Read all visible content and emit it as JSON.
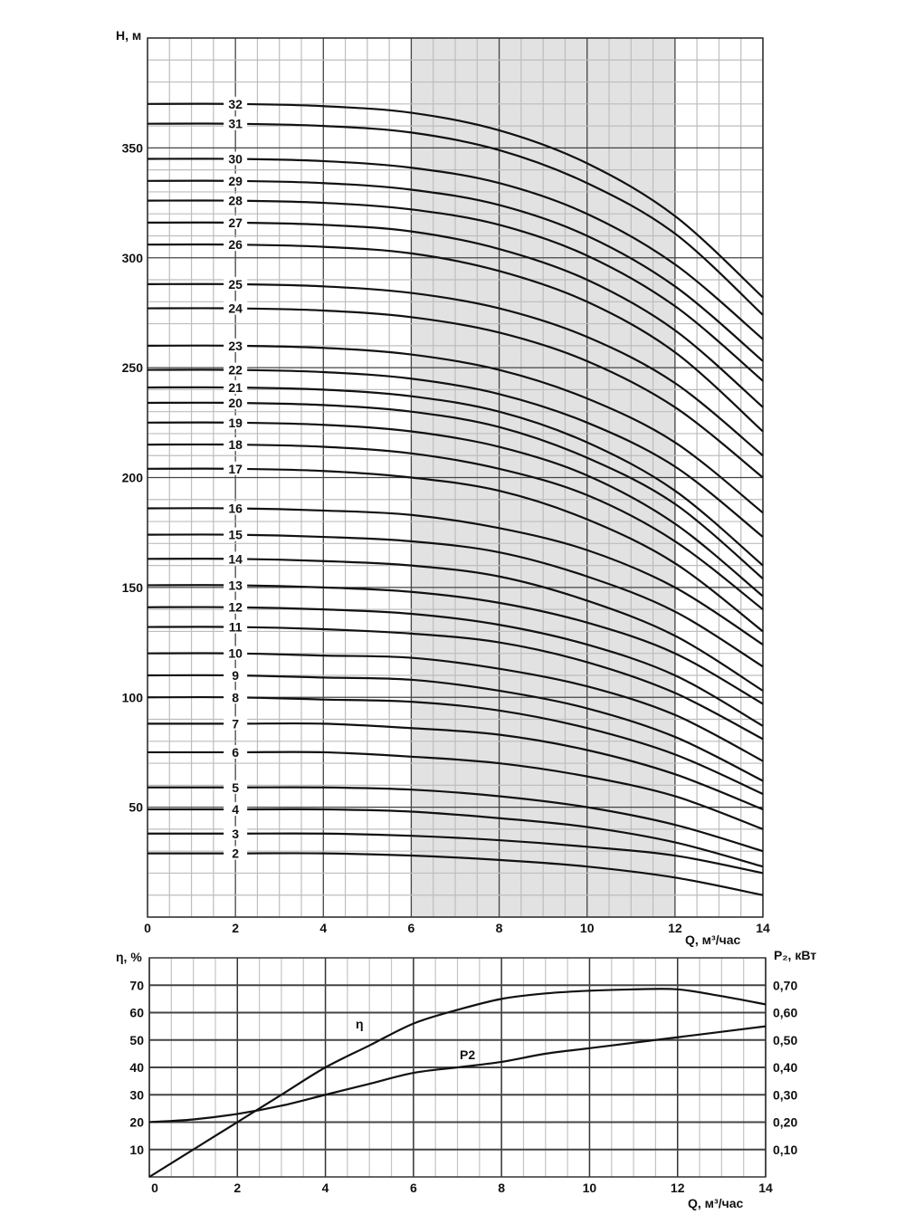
{
  "chart_data": [
    {
      "type": "line",
      "ylabel": "H, м",
      "xlabel": "Q, м³/час",
      "xlim": [
        0,
        14
      ],
      "ylim": [
        0,
        400
      ],
      "xticks": [
        0,
        2,
        4,
        6,
        8,
        10,
        12,
        14
      ],
      "yticks": [
        50,
        100,
        150,
        200,
        250,
        300,
        350
      ],
      "grid": true,
      "shaded_range_x": [
        6,
        12
      ],
      "shade_color": "#e2e2e2",
      "x": [
        0,
        2,
        4,
        6,
        8,
        10,
        12,
        14
      ],
      "series": [
        {
          "name": "32",
          "values": [
            370,
            370,
            369,
            366,
            358,
            343,
            319,
            282
          ]
        },
        {
          "name": "31",
          "values": [
            361,
            361,
            360,
            357,
            349,
            334,
            311,
            274
          ]
        },
        {
          "name": "30",
          "values": [
            345,
            345,
            344,
            341,
            334,
            320,
            297,
            263
          ]
        },
        {
          "name": "29",
          "values": [
            335,
            335,
            334,
            331,
            324,
            310,
            287,
            253
          ]
        },
        {
          "name": "28",
          "values": [
            326,
            326,
            325,
            322,
            315,
            301,
            278,
            244
          ]
        },
        {
          "name": "27",
          "values": [
            316,
            316,
            315,
            312,
            304,
            290,
            267,
            232
          ]
        },
        {
          "name": "26",
          "values": [
            306,
            306,
            305,
            302,
            294,
            280,
            257,
            221
          ]
        },
        {
          "name": "25",
          "values": [
            288,
            288,
            287,
            284,
            277,
            264,
            243,
            210
          ]
        },
        {
          "name": "24",
          "values": [
            277,
            277,
            276,
            273,
            266,
            253,
            232,
            200
          ]
        },
        {
          "name": "23",
          "values": [
            260,
            260,
            259,
            256,
            249,
            236,
            216,
            184
          ]
        },
        {
          "name": "22",
          "values": [
            249,
            249,
            248,
            245,
            238,
            225,
            205,
            173
          ]
        },
        {
          "name": "21",
          "values": [
            241,
            241,
            240,
            237,
            230,
            216,
            194,
            160
          ]
        },
        {
          "name": "20",
          "values": [
            234,
            234,
            233,
            230,
            223,
            209,
            188,
            154
          ]
        },
        {
          "name": "19",
          "values": [
            225,
            225,
            224,
            221,
            214,
            201,
            179,
            146
          ]
        },
        {
          "name": "18",
          "values": [
            215,
            215,
            214,
            211,
            204,
            192,
            171,
            140
          ]
        },
        {
          "name": "17",
          "values": [
            204,
            204,
            203,
            200,
            194,
            181,
            161,
            130
          ]
        },
        {
          "name": "16",
          "values": [
            186,
            186,
            185,
            183,
            177,
            167,
            150,
            124
          ]
        },
        {
          "name": "15",
          "values": [
            174,
            174,
            173,
            171,
            166,
            155,
            139,
            114
          ]
        },
        {
          "name": "14",
          "values": [
            163,
            163,
            162,
            160,
            155,
            144,
            128,
            103
          ]
        },
        {
          "name": "13",
          "values": [
            151,
            151,
            150,
            148,
            143,
            134,
            120,
            97
          ]
        },
        {
          "name": "12",
          "values": [
            141,
            141,
            140,
            138,
            133,
            124,
            110,
            87
          ]
        },
        {
          "name": "11",
          "values": [
            132,
            132,
            131,
            129,
            125,
            116,
            102,
            81
          ]
        },
        {
          "name": "10",
          "values": [
            120,
            120,
            119,
            118,
            113,
            105,
            92,
            71
          ]
        },
        {
          "name": "9",
          "values": [
            110,
            110,
            109,
            108,
            103,
            95,
            82,
            62
          ]
        },
        {
          "name": "8",
          "values": [
            100,
            100,
            99,
            98,
            94,
            86,
            74,
            56
          ]
        },
        {
          "name": "7",
          "values": [
            88,
            88,
            88,
            86,
            83,
            76,
            65,
            49
          ]
        },
        {
          "name": "6",
          "values": [
            75,
            75,
            75,
            73,
            70,
            64,
            55,
            40
          ]
        },
        {
          "name": "5",
          "values": [
            59,
            59,
            59,
            58,
            55,
            50,
            42,
            30
          ]
        },
        {
          "name": "4",
          "values": [
            49,
            49,
            49,
            48,
            45,
            41,
            34,
            23
          ]
        },
        {
          "name": "3",
          "values": [
            38,
            38,
            38,
            37,
            35,
            32,
            28,
            20
          ]
        },
        {
          "name": "2",
          "values": [
            29,
            29,
            29,
            28,
            26,
            23,
            18,
            10
          ]
        }
      ]
    },
    {
      "type": "line",
      "ylabel": "η, %",
      "ylabel_right": "P₂, кВт",
      "xlabel": "Q, м³/час",
      "xlim": [
        0,
        14
      ],
      "ylim": [
        0,
        80
      ],
      "ylim_right": [
        0,
        0.8
      ],
      "xticks": [
        0,
        2,
        4,
        6,
        8,
        10,
        12,
        14
      ],
      "yticks": [
        10,
        20,
        30,
        40,
        50,
        60,
        70
      ],
      "yticks_right": [
        "0,10",
        "0,20",
        "0,30",
        "0,40",
        "0,50",
        "0,60",
        "0,70"
      ],
      "grid": true,
      "x": [
        0,
        1,
        2,
        3,
        4,
        5,
        6,
        7,
        8,
        9,
        10,
        11,
        12,
        13,
        14
      ],
      "series": [
        {
          "name": "η",
          "axis": "left",
          "values": [
            0,
            10,
            20,
            30,
            40,
            48,
            56,
            61,
            65,
            67,
            68,
            68.5,
            68.5,
            66,
            63
          ]
        },
        {
          "name": "P2",
          "axis": "right",
          "values": [
            0.2,
            0.21,
            0.23,
            0.26,
            0.3,
            0.34,
            0.38,
            0.4,
            0.42,
            0.45,
            0.47,
            0.49,
            0.51,
            0.53,
            0.55
          ]
        }
      ]
    }
  ]
}
